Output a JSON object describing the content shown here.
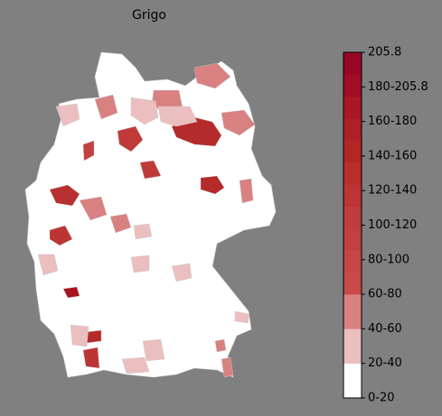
{
  "title": "Grigo",
  "colorbar": {
    "labels": [
      "0-20",
      "20-40",
      "40-60",
      "60-80",
      "80-100",
      "100-120",
      "120-140",
      "140-160",
      "160-180",
      "180-205.8",
      "205.8"
    ],
    "colors": [
      "#ffffff",
      "#ebbfbf",
      "#d98181",
      "#c94848",
      "#c64545",
      "#c34040",
      "#c03b3b",
      "#bd3434",
      "#b92d2d",
      "#b42626",
      "#ae1f27",
      "#a81628",
      "#a00d25",
      "#980623"
    ]
  }
}
